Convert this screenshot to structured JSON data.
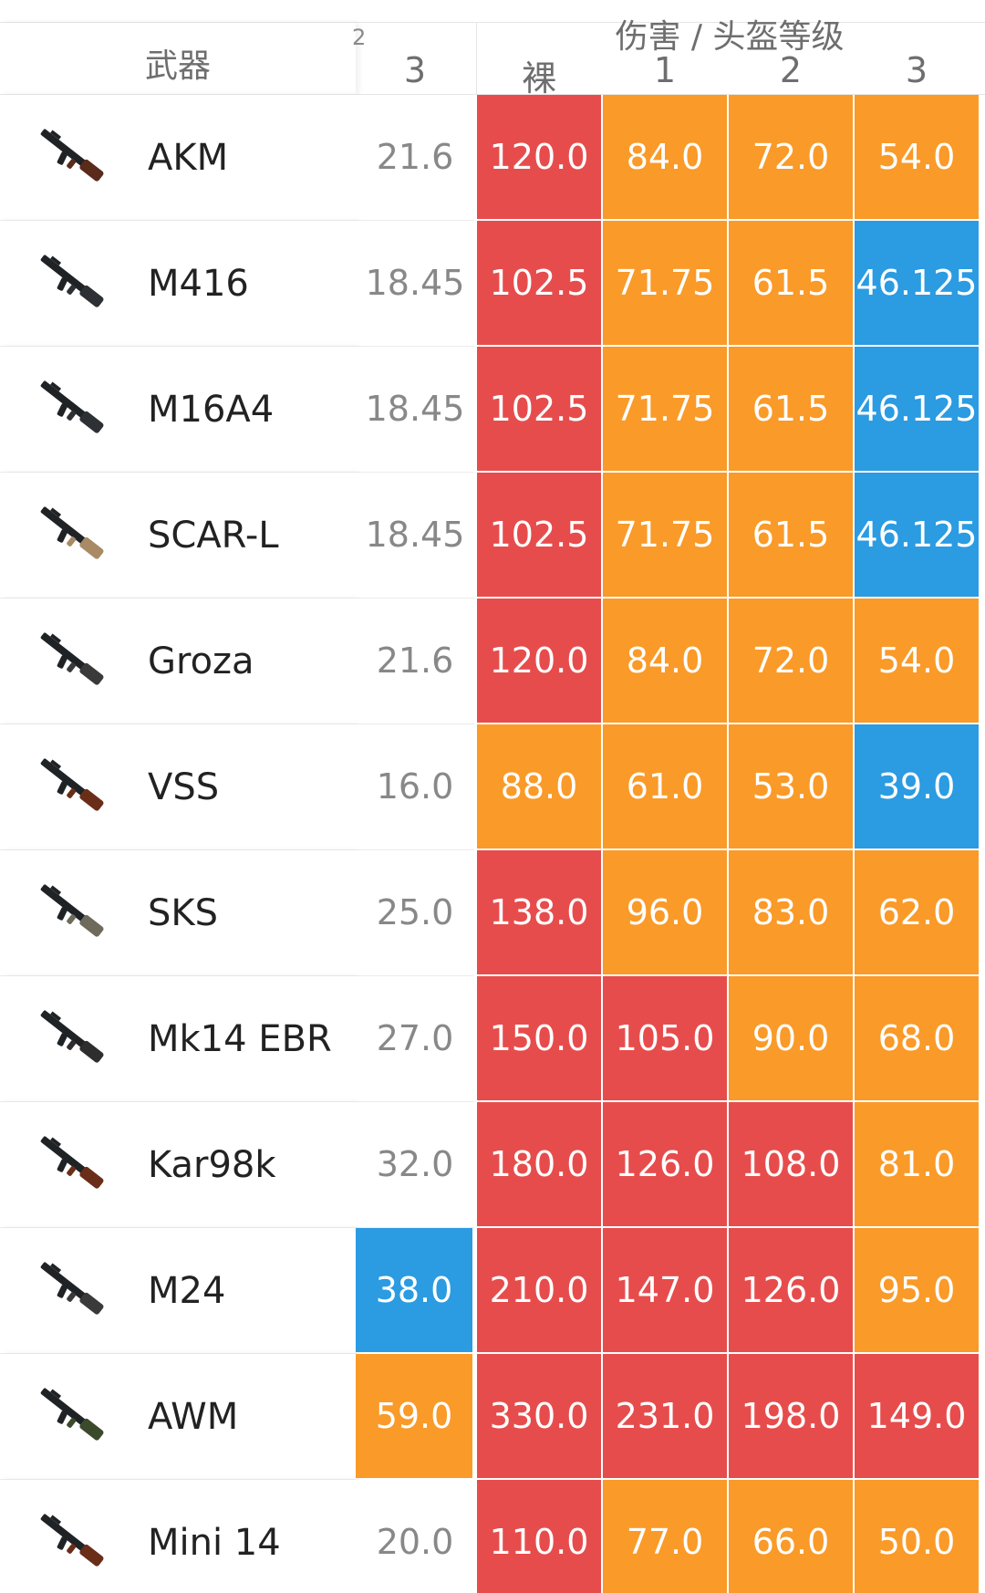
{
  "header": {
    "weapon_label": "武器",
    "group_title": "伤害 / 头盔等级",
    "cut_glyph": "2",
    "body_col": "3",
    "cols": [
      "裸",
      "1",
      "2",
      "3"
    ]
  },
  "colors": {
    "red": "#e74c4c",
    "orange": "#fa9a28",
    "blue": "#2b9be2",
    "white": "#ffffff"
  },
  "rows": [
    {
      "name": "AKM",
      "icon": "akm-rifle-icon",
      "body": "21.6",
      "body_color": "white",
      "vals": [
        "120.0",
        "84.0",
        "72.0",
        "54.0"
      ],
      "colors": [
        "red",
        "orange",
        "orange",
        "orange"
      ]
    },
    {
      "name": "M416",
      "icon": "m416-rifle-icon",
      "body": "18.45",
      "body_color": "white",
      "vals": [
        "102.5",
        "71.75",
        "61.5",
        "46.125"
      ],
      "colors": [
        "red",
        "orange",
        "orange",
        "blue"
      ]
    },
    {
      "name": "M16A4",
      "icon": "m16a4-rifle-icon",
      "body": "18.45",
      "body_color": "white",
      "vals": [
        "102.5",
        "71.75",
        "61.5",
        "46.125"
      ],
      "colors": [
        "red",
        "orange",
        "orange",
        "blue"
      ]
    },
    {
      "name": "SCAR-L",
      "icon": "scarl-rifle-icon",
      "body": "18.45",
      "body_color": "white",
      "vals": [
        "102.5",
        "71.75",
        "61.5",
        "46.125"
      ],
      "colors": [
        "red",
        "orange",
        "orange",
        "blue"
      ]
    },
    {
      "name": "Groza",
      "icon": "groza-rifle-icon",
      "body": "21.6",
      "body_color": "white",
      "vals": [
        "120.0",
        "84.0",
        "72.0",
        "54.0"
      ],
      "colors": [
        "red",
        "orange",
        "orange",
        "orange"
      ]
    },
    {
      "name": "VSS",
      "icon": "vss-rifle-icon",
      "body": "16.0",
      "body_color": "white",
      "vals": [
        "88.0",
        "61.0",
        "53.0",
        "39.0"
      ],
      "colors": [
        "orange",
        "orange",
        "orange",
        "blue"
      ]
    },
    {
      "name": "SKS",
      "icon": "sks-rifle-icon",
      "body": "25.0",
      "body_color": "white",
      "vals": [
        "138.0",
        "96.0",
        "83.0",
        "62.0"
      ],
      "colors": [
        "red",
        "orange",
        "orange",
        "orange"
      ]
    },
    {
      "name": "Mk14 EBR",
      "icon": "mk14-rifle-icon",
      "body": "27.0",
      "body_color": "white",
      "vals": [
        "150.0",
        "105.0",
        "90.0",
        "68.0"
      ],
      "colors": [
        "red",
        "red",
        "orange",
        "orange"
      ]
    },
    {
      "name": "Kar98k",
      "icon": "kar98k-rifle-icon",
      "body": "32.0",
      "body_color": "white",
      "vals": [
        "180.0",
        "126.0",
        "108.0",
        "81.0"
      ],
      "colors": [
        "red",
        "red",
        "red",
        "orange"
      ]
    },
    {
      "name": "M24",
      "icon": "m24-rifle-icon",
      "body": "38.0",
      "body_color": "blue",
      "vals": [
        "210.0",
        "147.0",
        "126.0",
        "95.0"
      ],
      "colors": [
        "red",
        "red",
        "red",
        "orange"
      ]
    },
    {
      "name": "AWM",
      "icon": "awm-rifle-icon",
      "body": "59.0",
      "body_color": "orange",
      "vals": [
        "330.0",
        "231.0",
        "198.0",
        "149.0"
      ],
      "colors": [
        "red",
        "red",
        "red",
        "red"
      ]
    },
    {
      "name": "Mini 14",
      "icon": "mini14-rifle-icon",
      "body": "20.0",
      "body_color": "white",
      "vals": [
        "110.0",
        "77.0",
        "66.0",
        "50.0"
      ],
      "colors": [
        "red",
        "orange",
        "orange",
        "orange"
      ]
    }
  ]
}
